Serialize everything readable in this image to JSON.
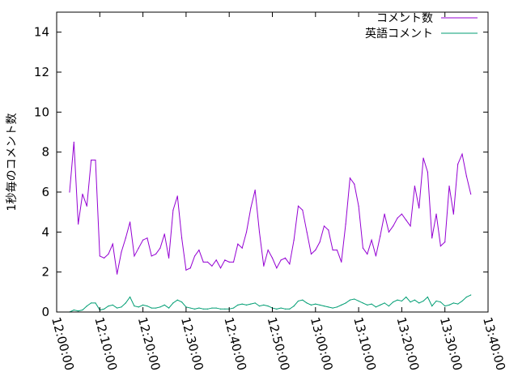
{
  "chart_data": {
    "type": "line",
    "title": "",
    "xlabel": "",
    "ylabel": "1秒毎のコメント数",
    "xlim": [
      "12:00:00",
      "13:40:00"
    ],
    "ylim": [
      0,
      15
    ],
    "x_ticks": [
      "12:00:00",
      "12:10:00",
      "12:20:00",
      "12:30:00",
      "12:40:00",
      "12:50:00",
      "13:00:00",
      "13:10:00",
      "13:20:00",
      "13:30:00",
      "13:40:00"
    ],
    "y_ticks": [
      0,
      2,
      4,
      6,
      8,
      10,
      12,
      14
    ],
    "grid": false,
    "legend_position": "top-right",
    "series": [
      {
        "name": "コメント数",
        "color": "#9400d3",
        "x": [
          "12:03:00",
          "12:04:00",
          "12:05:00",
          "12:06:00",
          "12:07:00",
          "12:08:00",
          "12:09:00",
          "12:10:00",
          "12:11:00",
          "12:12:00",
          "12:13:00",
          "12:14:00",
          "12:15:00",
          "12:16:00",
          "12:17:00",
          "12:18:00",
          "12:19:00",
          "12:20:00",
          "12:21:00",
          "12:22:00",
          "12:23:00",
          "12:24:00",
          "12:25:00",
          "12:26:00",
          "12:27:00",
          "12:28:00",
          "12:29:00",
          "12:30:00",
          "12:31:00",
          "12:32:00",
          "12:33:00",
          "12:34:00",
          "12:35:00",
          "12:36:00",
          "12:37:00",
          "12:38:00",
          "12:39:00",
          "12:40:00",
          "12:41:00",
          "12:42:00",
          "12:43:00",
          "12:44:00",
          "12:45:00",
          "12:46:00",
          "12:47:00",
          "12:48:00",
          "12:49:00",
          "12:50:00",
          "12:51:00",
          "12:52:00",
          "12:53:00",
          "12:54:00",
          "12:55:00",
          "12:56:00",
          "12:57:00",
          "12:58:00",
          "12:59:00",
          "13:00:00",
          "13:01:00",
          "13:02:00",
          "13:03:00",
          "13:04:00",
          "13:05:00",
          "13:06:00",
          "13:07:00",
          "13:08:00",
          "13:09:00",
          "13:10:00",
          "13:11:00",
          "13:12:00",
          "13:13:00",
          "13:14:00",
          "13:15:00",
          "13:16:00",
          "13:17:00",
          "13:18:00",
          "13:19:00",
          "13:20:00",
          "13:21:00",
          "13:22:00",
          "13:23:00",
          "13:24:00",
          "13:25:00",
          "13:26:00",
          "13:27:00",
          "13:28:00",
          "13:29:00",
          "13:30:00",
          "13:31:00",
          "13:32:00",
          "13:33:00",
          "13:34:00",
          "13:35:00",
          "13:36:00"
        ],
        "values": [
          6.0,
          8.5,
          4.4,
          5.9,
          5.3,
          7.6,
          7.6,
          2.8,
          2.7,
          2.9,
          3.4,
          1.9,
          3.0,
          3.7,
          4.5,
          2.8,
          3.2,
          3.6,
          3.7,
          2.8,
          2.9,
          3.2,
          3.9,
          2.7,
          5.1,
          5.8,
          3.7,
          2.1,
          2.2,
          2.8,
          3.1,
          2.5,
          2.5,
          2.3,
          2.6,
          2.2,
          2.6,
          2.5,
          2.5,
          3.4,
          3.2,
          4.0,
          5.2,
          6.1,
          4.0,
          2.3,
          3.1,
          2.7,
          2.2,
          2.6,
          2.7,
          2.4,
          3.6,
          5.3,
          5.1,
          4.0,
          2.9,
          3.1,
          3.5,
          4.3,
          4.1,
          3.1,
          3.1,
          2.5,
          4.4,
          6.7,
          6.4,
          5.3,
          3.2,
          2.9,
          3.6,
          2.8,
          3.8,
          4.9,
          4.0,
          4.3,
          4.7,
          4.9,
          4.6,
          4.3,
          6.3,
          5.2,
          7.7,
          7.0,
          3.7,
          4.9,
          3.3,
          3.5,
          6.3,
          4.9,
          7.4,
          7.9,
          6.8,
          5.9
        ]
      },
      {
        "name": "英語コメント",
        "color": "#009e73",
        "x": [
          "12:03:00",
          "12:04:00",
          "12:05:00",
          "12:06:00",
          "12:07:00",
          "12:08:00",
          "12:09:00",
          "12:10:00",
          "12:11:00",
          "12:12:00",
          "12:13:00",
          "12:14:00",
          "12:15:00",
          "12:16:00",
          "12:17:00",
          "12:18:00",
          "12:19:00",
          "12:20:00",
          "12:21:00",
          "12:22:00",
          "12:23:00",
          "12:24:00",
          "12:25:00",
          "12:26:00",
          "12:27:00",
          "12:28:00",
          "12:29:00",
          "12:30:00",
          "12:31:00",
          "12:32:00",
          "12:33:00",
          "12:34:00",
          "12:35:00",
          "12:36:00",
          "12:37:00",
          "12:38:00",
          "12:39:00",
          "12:40:00",
          "12:41:00",
          "12:42:00",
          "12:43:00",
          "12:44:00",
          "12:45:00",
          "12:46:00",
          "12:47:00",
          "12:48:00",
          "12:49:00",
          "12:50:00",
          "12:51:00",
          "12:52:00",
          "12:53:00",
          "12:54:00",
          "12:55:00",
          "12:56:00",
          "12:57:00",
          "12:58:00",
          "12:59:00",
          "13:00:00",
          "13:01:00",
          "13:02:00",
          "13:03:00",
          "13:04:00",
          "13:05:00",
          "13:06:00",
          "13:07:00",
          "13:08:00",
          "13:09:00",
          "13:10:00",
          "13:11:00",
          "13:12:00",
          "13:13:00",
          "13:14:00",
          "13:15:00",
          "13:16:00",
          "13:17:00",
          "13:18:00",
          "13:19:00",
          "13:20:00",
          "13:21:00",
          "13:22:00",
          "13:23:00",
          "13:24:00",
          "13:25:00",
          "13:26:00",
          "13:27:00",
          "13:28:00",
          "13:29:00",
          "13:30:00",
          "13:31:00",
          "13:32:00",
          "13:33:00",
          "13:34:00",
          "13:35:00",
          "13:36:00"
        ],
        "values": [
          0.0,
          0.1,
          0.05,
          0.1,
          0.3,
          0.45,
          0.45,
          0.1,
          0.15,
          0.3,
          0.35,
          0.2,
          0.25,
          0.45,
          0.75,
          0.3,
          0.25,
          0.35,
          0.3,
          0.2,
          0.2,
          0.25,
          0.35,
          0.2,
          0.45,
          0.6,
          0.5,
          0.25,
          0.2,
          0.15,
          0.2,
          0.15,
          0.15,
          0.2,
          0.2,
          0.15,
          0.15,
          0.15,
          0.2,
          0.35,
          0.4,
          0.35,
          0.4,
          0.45,
          0.3,
          0.35,
          0.3,
          0.2,
          0.15,
          0.2,
          0.15,
          0.15,
          0.3,
          0.55,
          0.6,
          0.45,
          0.35,
          0.4,
          0.35,
          0.3,
          0.25,
          0.2,
          0.25,
          0.35,
          0.45,
          0.6,
          0.65,
          0.55,
          0.45,
          0.35,
          0.4,
          0.25,
          0.35,
          0.45,
          0.3,
          0.5,
          0.6,
          0.55,
          0.75,
          0.5,
          0.6,
          0.45,
          0.55,
          0.75,
          0.3,
          0.55,
          0.5,
          0.3,
          0.35,
          0.45,
          0.4,
          0.55,
          0.75,
          0.85
        ]
      }
    ]
  }
}
